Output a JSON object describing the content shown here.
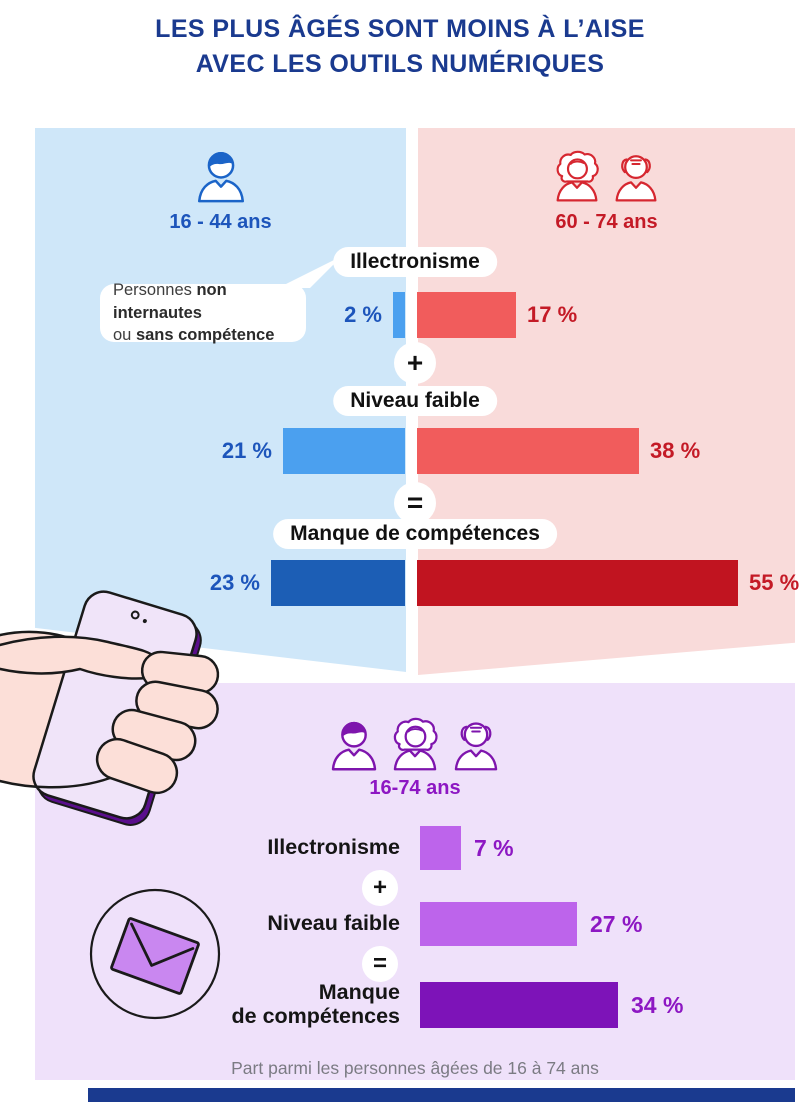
{
  "page": {
    "title_line1": "LES PLUS ÂGÉS SONT MOINS À L’AISE",
    "title_line2": "AVEC LES OUTILS NUMÉRIQUES",
    "footnote": "Part parmi les personnes âgées de 16 à 74 ans"
  },
  "colors": {
    "title_navy": "#1a3a8f",
    "panel_blue": "#cfe7f9",
    "panel_pink": "#f9dbda",
    "panel_purple": "#efe1fa",
    "bar_blue_light": "#4ba0ef",
    "bar_blue_dark": "#1c5eb5",
    "bar_red_light": "#f15c5c",
    "bar_red_dark": "#c11420",
    "bar_purple_light": "#bd64eb",
    "bar_purple_dark": "#7d13b8",
    "text_blue": "#1d55bb",
    "text_red": "#c41a26",
    "text_purple": "#8d17c3",
    "icon_blue": "#1b64c8",
    "icon_red": "#d62730",
    "icon_purple": "#7e15ad",
    "footnote_gray": "#7b7b83",
    "hand_skin": "#fcdfd8",
    "phone_screen": "#f0e4f9",
    "phone_edge": "#5a0e8c",
    "envelope_purple": "#c987f0",
    "outline_black": "#1a1a1a"
  },
  "tooltip": {
    "text_1": "Personnes ",
    "bold_1": "non internautes",
    "text_2": "ou ",
    "bold_2": "sans compétence"
  },
  "operators": {
    "plus": "+",
    "equals": "="
  },
  "display": {
    "manque_line1": "Manque",
    "manque_line2": "de compétences"
  },
  "chart_data": [
    {
      "type": "bar",
      "orientation": "horizontal",
      "title": "Illectronisme + Niveau faible = Manque de compétences, par âge",
      "categories": [
        "Illectronisme",
        "Niveau faible",
        "Manque de compétences"
      ],
      "series": [
        {
          "name": "16 - 44 ans",
          "values": [
            2,
            21,
            23
          ]
        },
        {
          "name": "60 - 74 ans",
          "values": [
            17,
            38,
            55
          ]
        }
      ],
      "unit": "%",
      "legend_position": "top",
      "annotation": "Personnes non internautes ou sans compétence"
    },
    {
      "type": "bar",
      "orientation": "horizontal",
      "categories": [
        "Illectronisme",
        "Niveau faible",
        "Manque de compétences"
      ],
      "series": [
        {
          "name": "16-74 ans",
          "values": [
            7,
            27,
            34
          ]
        }
      ],
      "unit": "%",
      "footnote": "Part parmi les personnes âgées de 16 à 74 ans"
    }
  ]
}
